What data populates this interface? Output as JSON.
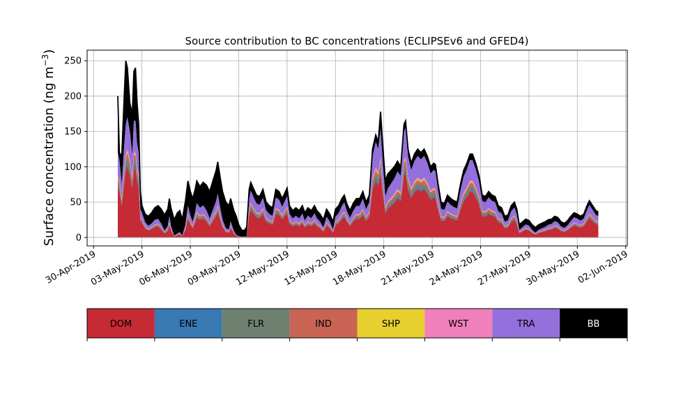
{
  "chart_data": {
    "type": "area",
    "title": "Source contribution to BC concentrations (ECLIPSEv6 and GFED4)",
    "xlabel": "",
    "ylabel_main": "Surface concentration (ng m",
    "ylabel_sup": "−3",
    "ylabel_close": ")",
    "ylim": [
      -12,
      265
    ],
    "yticks": [
      0,
      50,
      100,
      150,
      200,
      250
    ],
    "xlim_day": [
      -0.4,
      33.1
    ],
    "xticks": [
      {
        "day": 0,
        "label": "30-Apr-2019"
      },
      {
        "day": 3,
        "label": "03-May-2019"
      },
      {
        "day": 6,
        "label": "06-May-2019"
      },
      {
        "day": 9,
        "label": "09-May-2019"
      },
      {
        "day": 12,
        "label": "12-May-2019"
      },
      {
        "day": 15,
        "label": "15-May-2019"
      },
      {
        "day": 18,
        "label": "18-May-2019"
      },
      {
        "day": 21,
        "label": "21-May-2019"
      },
      {
        "day": 24,
        "label": "24-May-2019"
      },
      {
        "day": 27,
        "label": "27-May-2019"
      },
      {
        "day": 30,
        "label": "30-May-2019"
      },
      {
        "day": 33,
        "label": "02-Jun-2019"
      }
    ],
    "grid": true,
    "legend_placement": "colorbar-below",
    "series_keys": [
      {
        "name": "DOM",
        "color": "#c62a35",
        "text_color": "#000000"
      },
      {
        "name": "ENE",
        "color": "#3878b3",
        "text_color": "#000000"
      },
      {
        "name": "FLR",
        "color": "#6e8070",
        "text_color": "#000000"
      },
      {
        "name": "IND",
        "color": "#c96455",
        "text_color": "#000000"
      },
      {
        "name": "SHP",
        "color": "#e6cf2e",
        "text_color": "#000000"
      },
      {
        "name": "WST",
        "color": "#f080bb",
        "text_color": "#000000"
      },
      {
        "name": "TRA",
        "color": "#9370db",
        "text_color": "#000000"
      },
      {
        "name": "BB",
        "color": "#000000",
        "text_color": "#ffffff"
      }
    ],
    "total_profile": [
      [
        1.5,
        200
      ],
      [
        1.6,
        120
      ],
      [
        1.75,
        115
      ],
      [
        1.9,
        200
      ],
      [
        2.0,
        250
      ],
      [
        2.1,
        240
      ],
      [
        2.25,
        190
      ],
      [
        2.4,
        175
      ],
      [
        2.5,
        235
      ],
      [
        2.6,
        240
      ],
      [
        2.7,
        190
      ],
      [
        2.8,
        160
      ],
      [
        2.9,
        65
      ],
      [
        3.0,
        45
      ],
      [
        3.2,
        33
      ],
      [
        3.4,
        30
      ],
      [
        3.6,
        35
      ],
      [
        3.8,
        42
      ],
      [
        4.0,
        45
      ],
      [
        4.2,
        40
      ],
      [
        4.4,
        32
      ],
      [
        4.6,
        40
      ],
      [
        4.7,
        55
      ],
      [
        4.8,
        42
      ],
      [
        5.0,
        25
      ],
      [
        5.2,
        35
      ],
      [
        5.35,
        38
      ],
      [
        5.5,
        25
      ],
      [
        5.7,
        52
      ],
      [
        5.85,
        80
      ],
      [
        6.0,
        65
      ],
      [
        6.15,
        55
      ],
      [
        6.3,
        68
      ],
      [
        6.4,
        80
      ],
      [
        6.6,
        72
      ],
      [
        6.8,
        78
      ],
      [
        7.0,
        74
      ],
      [
        7.2,
        65
      ],
      [
        7.4,
        80
      ],
      [
        7.6,
        95
      ],
      [
        7.7,
        107
      ],
      [
        7.85,
        85
      ],
      [
        8.0,
        65
      ],
      [
        8.2,
        50
      ],
      [
        8.4,
        45
      ],
      [
        8.5,
        55
      ],
      [
        8.7,
        38
      ],
      [
        8.85,
        30
      ],
      [
        9.0,
        18
      ],
      [
        9.2,
        10
      ],
      [
        9.35,
        10
      ],
      [
        9.5,
        15
      ],
      [
        9.65,
        68
      ],
      [
        9.75,
        78
      ],
      [
        9.9,
        70
      ],
      [
        10.1,
        60
      ],
      [
        10.3,
        58
      ],
      [
        10.5,
        68
      ],
      [
        10.7,
        50
      ],
      [
        10.9,
        45
      ],
      [
        11.1,
        42
      ],
      [
        11.3,
        68
      ],
      [
        11.5,
        65
      ],
      [
        11.7,
        55
      ],
      [
        11.9,
        65
      ],
      [
        12.0,
        70
      ],
      [
        12.15,
        45
      ],
      [
        12.35,
        38
      ],
      [
        12.55,
        42
      ],
      [
        12.75,
        38
      ],
      [
        12.95,
        45
      ],
      [
        13.1,
        35
      ],
      [
        13.3,
        42
      ],
      [
        13.5,
        38
      ],
      [
        13.7,
        45
      ],
      [
        13.85,
        38
      ],
      [
        14.05,
        33
      ],
      [
        14.25,
        25
      ],
      [
        14.45,
        40
      ],
      [
        14.65,
        33
      ],
      [
        14.85,
        22
      ],
      [
        15.0,
        40
      ],
      [
        15.2,
        45
      ],
      [
        15.4,
        55
      ],
      [
        15.55,
        60
      ],
      [
        15.7,
        48
      ],
      [
        15.9,
        38
      ],
      [
        16.1,
        48
      ],
      [
        16.3,
        55
      ],
      [
        16.5,
        55
      ],
      [
        16.7,
        65
      ],
      [
        16.9,
        50
      ],
      [
        17.1,
        60
      ],
      [
        17.3,
        125
      ],
      [
        17.5,
        145
      ],
      [
        17.65,
        135
      ],
      [
        17.8,
        178
      ],
      [
        17.95,
        125
      ],
      [
        18.1,
        80
      ],
      [
        18.25,
        90
      ],
      [
        18.45,
        95
      ],
      [
        18.65,
        100
      ],
      [
        18.85,
        108
      ],
      [
        19.05,
        100
      ],
      [
        19.25,
        160
      ],
      [
        19.35,
        165
      ],
      [
        19.5,
        125
      ],
      [
        19.7,
        105
      ],
      [
        19.9,
        118
      ],
      [
        20.1,
        125
      ],
      [
        20.3,
        120
      ],
      [
        20.5,
        125
      ],
      [
        20.7,
        115
      ],
      [
        20.9,
        100
      ],
      [
        21.1,
        105
      ],
      [
        21.2,
        103
      ],
      [
        21.35,
        78
      ],
      [
        21.55,
        50
      ],
      [
        21.75,
        48
      ],
      [
        21.95,
        60
      ],
      [
        22.15,
        55
      ],
      [
        22.35,
        52
      ],
      [
        22.55,
        50
      ],
      [
        22.75,
        75
      ],
      [
        22.95,
        95
      ],
      [
        23.15,
        105
      ],
      [
        23.35,
        118
      ],
      [
        23.5,
        118
      ],
      [
        23.7,
        105
      ],
      [
        23.9,
        88
      ],
      [
        24.1,
        60
      ],
      [
        24.3,
        58
      ],
      [
        24.5,
        65
      ],
      [
        24.7,
        60
      ],
      [
        24.9,
        58
      ],
      [
        25.1,
        45
      ],
      [
        25.3,
        42
      ],
      [
        25.5,
        30
      ],
      [
        25.7,
        32
      ],
      [
        25.9,
        45
      ],
      [
        26.1,
        50
      ],
      [
        26.25,
        40
      ],
      [
        26.4,
        18
      ],
      [
        26.6,
        22
      ],
      [
        26.8,
        26
      ],
      [
        27.0,
        24
      ],
      [
        27.2,
        18
      ],
      [
        27.4,
        14
      ],
      [
        27.6,
        18
      ],
      [
        27.8,
        20
      ],
      [
        28.0,
        22
      ],
      [
        28.2,
        25
      ],
      [
        28.4,
        26
      ],
      [
        28.6,
        30
      ],
      [
        28.8,
        28
      ],
      [
        29.0,
        22
      ],
      [
        29.2,
        20
      ],
      [
        29.4,
        24
      ],
      [
        29.6,
        30
      ],
      [
        29.8,
        35
      ],
      [
        30.0,
        33
      ],
      [
        30.2,
        30
      ],
      [
        30.4,
        33
      ],
      [
        30.6,
        45
      ],
      [
        30.75,
        52
      ],
      [
        30.95,
        45
      ],
      [
        31.15,
        38
      ],
      [
        31.3,
        36
      ]
    ],
    "frac_dom": 0.56,
    "frac_ene": 0.02,
    "frac_flr": 0.05,
    "frac_ind": 0.04,
    "frac_shp": 0.01,
    "frac_wst": 0.02,
    "frac_tra": 0.25,
    "bb_extra": [
      [
        1.5,
        80
      ],
      [
        1.6,
        10
      ],
      [
        1.9,
        70
      ],
      [
        2.0,
        90
      ],
      [
        2.25,
        40
      ],
      [
        2.5,
        70
      ],
      [
        2.6,
        75
      ],
      [
        2.8,
        40
      ],
      [
        3.0,
        10
      ],
      [
        5.85,
        35
      ],
      [
        6.6,
        30
      ],
      [
        7.7,
        45
      ],
      [
        9.75,
        12
      ],
      [
        17.65,
        10
      ],
      [
        17.8,
        25
      ],
      [
        19.35,
        10
      ],
      [
        31.3,
        6
      ]
    ]
  }
}
